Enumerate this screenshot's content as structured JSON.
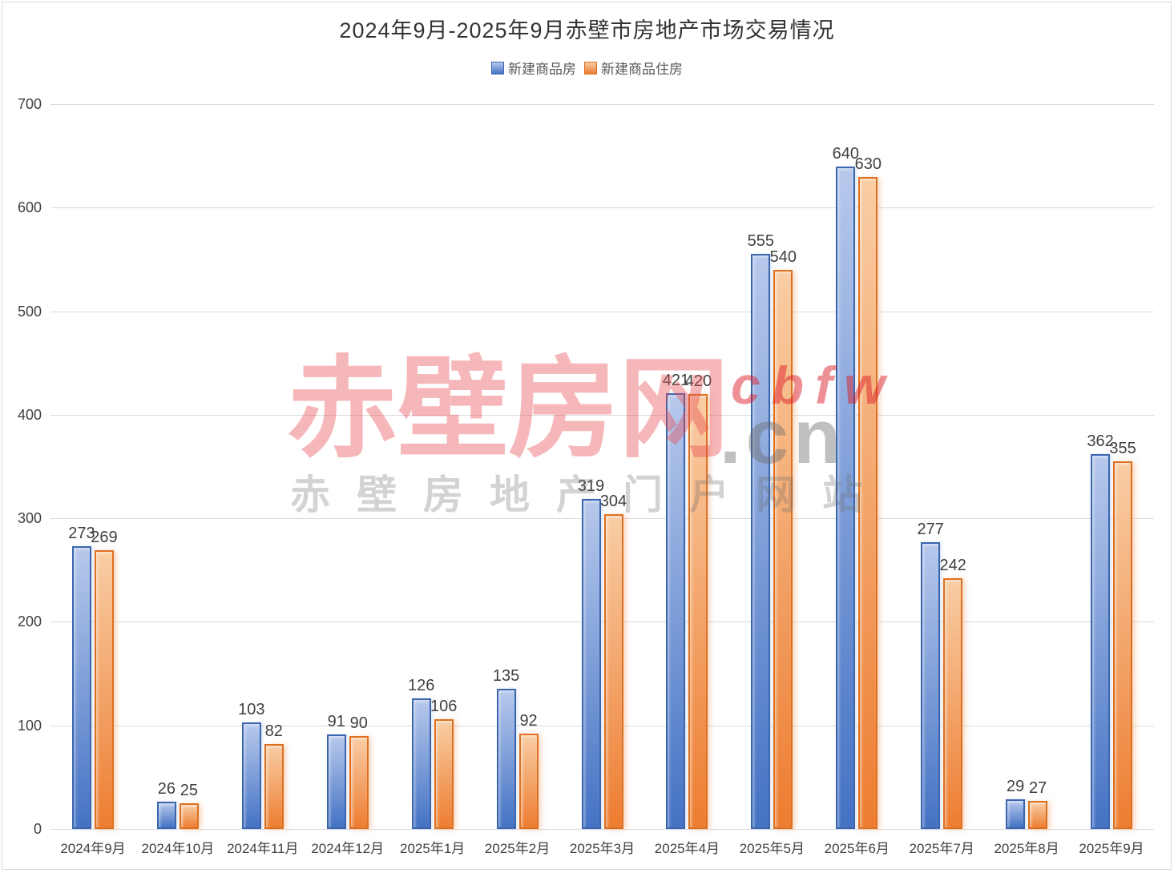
{
  "chart_data": {
    "type": "bar",
    "title": "2024年9月-2025年9月赤壁市房地产市场交易情况",
    "categories": [
      "2024年9月",
      "2024年10月",
      "2024年11月",
      "2024年12月",
      "2025年1月",
      "2025年2月",
      "2025年3月",
      "2025年4月",
      "2025年5月",
      "2025年6月",
      "2025年7月",
      "2025年8月",
      "2025年9月"
    ],
    "series": [
      {
        "name": "新建商品房",
        "values": [
          273,
          26,
          103,
          91,
          126,
          135,
          319,
          421,
          555,
          640,
          277,
          29,
          362
        ],
        "color_top": "#b7c9ec",
        "color_bottom": "#4472c4",
        "border_color": "#3b66ae"
      },
      {
        "name": "新建商品住房",
        "values": [
          269,
          25,
          82,
          90,
          106,
          92,
          304,
          420,
          540,
          630,
          242,
          27,
          355
        ],
        "color_top": "#f9cda4",
        "color_bottom": "#ed7d31",
        "border_color": "#dd7020"
      }
    ],
    "xlabel": "",
    "ylabel": "",
    "ylim": [
      0,
      700
    ],
    "yticks": [
      0,
      100,
      200,
      300,
      400,
      500,
      600,
      700
    ],
    "grid": true,
    "legend_position": "top",
    "value_labels": "outside-end"
  },
  "watermark": {
    "main": "赤壁房网",
    "latin_top": "cbfw",
    "latin_bottom": ".cn",
    "subtitle": "赤壁房地产门户网站",
    "main_color": "rgba(230,74,82,0.40)",
    "latin_top_color": "rgba(220,26,38,0.48)",
    "latin_bottom_color": "rgba(105,105,105,0.42)",
    "subtitle_color": "rgba(110,110,110,0.30)"
  }
}
